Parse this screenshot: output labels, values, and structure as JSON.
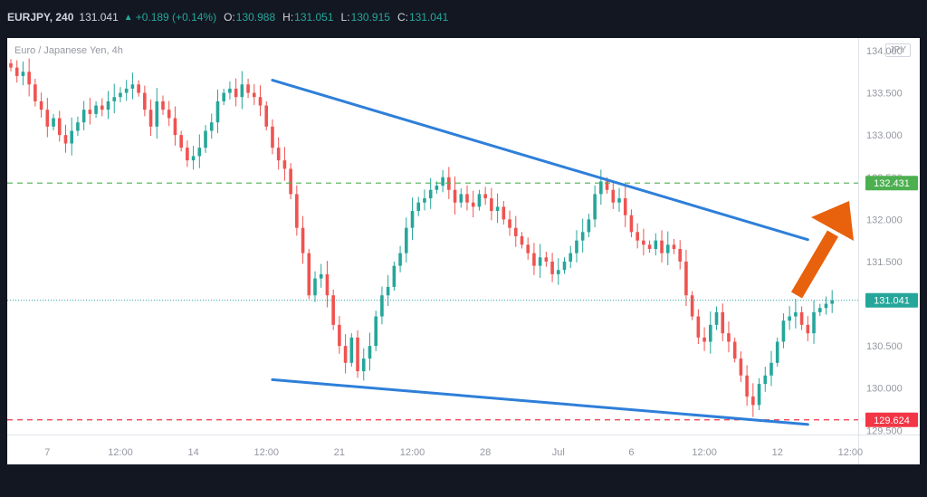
{
  "header": {
    "symbol": "EURJPY, 240",
    "last": "131.041",
    "change_icon": "triangle-up-icon",
    "change": "+0.189 (+0.14%)",
    "open_label": "O:",
    "open": "130.988",
    "high_label": "H:",
    "high": "131.051",
    "low_label": "L:",
    "low": "130.915",
    "close_label": "C:",
    "close": "131.041"
  },
  "chart": {
    "subtitle": "Euro / Japanese Yen, 4h",
    "currency_badge": "JPY"
  },
  "chart_data": {
    "type": "candlestick",
    "ylim": [
      129.45,
      134.15
    ],
    "y_ticks": [
      {
        "value": 134.0,
        "label": "134.000"
      },
      {
        "value": 133.5,
        "label": "133.500"
      },
      {
        "value": 133.0,
        "label": "133.000"
      },
      {
        "value": 132.5,
        "label": "132.500"
      },
      {
        "value": 132.0,
        "label": "132.000"
      },
      {
        "value": 131.5,
        "label": "131.500"
      },
      {
        "value": 131.0,
        "label": "131.000"
      },
      {
        "value": 130.5,
        "label": "130.500"
      },
      {
        "value": 130.0,
        "label": "130.000"
      },
      {
        "value": 129.5,
        "label": "129.500"
      }
    ],
    "x_ticks": [
      {
        "index": 6,
        "label": "7"
      },
      {
        "index": 18,
        "label": "12:00"
      },
      {
        "index": 30,
        "label": "14"
      },
      {
        "index": 42,
        "label": "12:00"
      },
      {
        "index": 54,
        "label": "21"
      },
      {
        "index": 66,
        "label": "12:00"
      },
      {
        "index": 78,
        "label": "28"
      },
      {
        "index": 90,
        "label": "Jul"
      },
      {
        "index": 102,
        "label": "6"
      },
      {
        "index": 114,
        "label": "12:00"
      },
      {
        "index": 126,
        "label": "12"
      },
      {
        "index": 138,
        "label": "12:00"
      }
    ],
    "up_color": "#26a69a",
    "down_color": "#ef5350",
    "closes": [
      133.8,
      133.7,
      133.75,
      133.6,
      133.4,
      133.3,
      133.1,
      133.2,
      133.0,
      132.9,
      133.05,
      133.15,
      133.3,
      133.25,
      133.35,
      133.3,
      133.4,
      133.45,
      133.5,
      133.55,
      133.6,
      133.5,
      133.3,
      133.1,
      133.4,
      133.3,
      133.2,
      133.0,
      132.85,
      132.7,
      132.75,
      132.85,
      133.05,
      133.15,
      133.4,
      133.5,
      133.55,
      133.45,
      133.6,
      133.5,
      133.45,
      133.35,
      133.1,
      132.85,
      132.7,
      132.6,
      132.3,
      131.9,
      131.6,
      131.1,
      131.3,
      131.35,
      131.1,
      130.75,
      130.5,
      130.3,
      130.6,
      130.2,
      130.35,
      130.5,
      130.85,
      131.1,
      131.2,
      131.45,
      131.6,
      131.9,
      132.1,
      132.2,
      132.25,
      132.35,
      132.4,
      132.5,
      132.35,
      132.2,
      132.3,
      132.2,
      132.15,
      132.3,
      132.25,
      132.1,
      132.15,
      132.0,
      131.9,
      131.8,
      131.7,
      131.6,
      131.45,
      131.55,
      131.5,
      131.35,
      131.4,
      131.5,
      131.6,
      131.75,
      131.85,
      132.0,
      132.3,
      132.45,
      132.35,
      132.2,
      132.25,
      132.05,
      131.85,
      131.75,
      131.7,
      131.65,
      131.75,
      131.6,
      131.7,
      131.65,
      131.5,
      131.1,
      130.85,
      130.6,
      130.55,
      130.75,
      130.9,
      130.65,
      130.55,
      130.35,
      130.15,
      129.9,
      129.8,
      130.05,
      130.15,
      130.3,
      130.55,
      130.8,
      130.85,
      130.9,
      130.75,
      130.65,
      130.9,
      130.95,
      131.0,
      131.041
    ],
    "resistance_line": {
      "label": "132.431",
      "value": 132.431,
      "color": "#4caf50"
    },
    "support_line": {
      "label": "129.624",
      "value": 129.624,
      "color": "#f23645"
    },
    "current_price": {
      "label": "131.041",
      "value": 131.041,
      "color": "#26a69a"
    },
    "trendlines": [
      {
        "name": "",
        "from": {
          "index": 43,
          "value": 133.65
        },
        "to": {
          "index": 131,
          "value": 131.76
        },
        "color": "#2e7fd9"
      },
      {
        "name": "",
        "from": {
          "index": 43,
          "value": 130.1
        },
        "to": {
          "index": 131,
          "value": 129.57
        },
        "color": "#2e7fd9"
      }
    ],
    "arrow": {
      "color": "#e8610c",
      "direction": "up-right"
    }
  }
}
